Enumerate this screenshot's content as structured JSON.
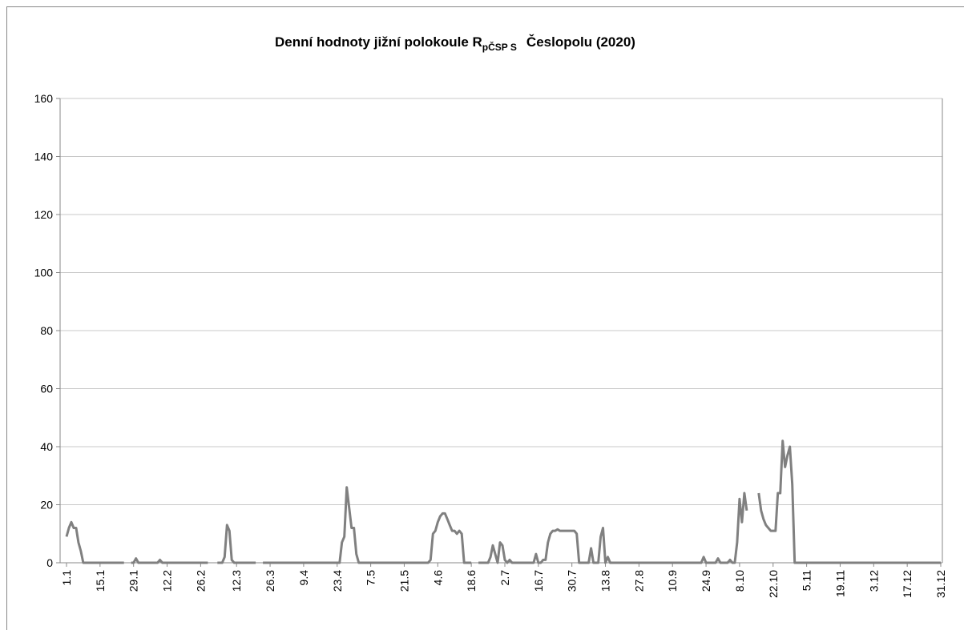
{
  "chart_data": {
    "type": "line",
    "title": "Denní hodnoty jižní polokoule R",
    "title_subscript": "pČSP S",
    "title_suffix": "Česlopolu (2020)",
    "categories": [
      "1.1",
      null,
      null,
      null,
      null,
      null,
      null,
      null,
      null,
      null,
      null,
      null,
      null,
      null,
      "15.1",
      null,
      null,
      null,
      null,
      null,
      null,
      null,
      null,
      null,
      null,
      null,
      null,
      null,
      "29.1",
      null,
      null,
      null,
      null,
      null,
      null,
      null,
      null,
      null,
      null,
      null,
      null,
      null,
      "12.2",
      null,
      null,
      null,
      null,
      null,
      null,
      null,
      null,
      null,
      null,
      null,
      null,
      null,
      "26.2",
      null,
      null,
      null,
      null,
      null,
      null,
      null,
      null,
      null,
      null,
      null,
      null,
      null,
      null,
      "12.3",
      null,
      null,
      null,
      null,
      null,
      null,
      null,
      null,
      null,
      null,
      null,
      null,
      null,
      "26.3",
      null,
      null,
      null,
      null,
      null,
      null,
      null,
      null,
      null,
      null,
      null,
      null,
      null,
      "9.4",
      null,
      null,
      null,
      null,
      null,
      null,
      null,
      null,
      null,
      null,
      null,
      null,
      null,
      "23.4",
      null,
      null,
      null,
      null,
      null,
      null,
      null,
      null,
      null,
      null,
      null,
      null,
      null,
      "7.5",
      null,
      null,
      null,
      null,
      null,
      null,
      null,
      null,
      null,
      null,
      null,
      null,
      null,
      "21.5",
      null,
      null,
      null,
      null,
      null,
      null,
      null,
      null,
      null,
      null,
      null,
      null,
      null,
      "4.6",
      null,
      null,
      null,
      null,
      null,
      null,
      null,
      null,
      null,
      null,
      null,
      null,
      null,
      "18.6",
      null,
      null,
      null,
      null,
      null,
      null,
      null,
      null,
      null,
      null,
      null,
      null,
      null,
      "2.7",
      null,
      null,
      null,
      null,
      null,
      null,
      null,
      null,
      null,
      null,
      null,
      null,
      null,
      "16.7",
      null,
      null,
      null,
      null,
      null,
      null,
      null,
      null,
      null,
      null,
      null,
      null,
      null,
      "30.7",
      null,
      null,
      null,
      null,
      null,
      null,
      null,
      null,
      null,
      null,
      null,
      null,
      null,
      "13.8",
      null,
      null,
      null,
      null,
      null,
      null,
      null,
      null,
      null,
      null,
      null,
      null,
      null,
      "27.8",
      null,
      null,
      null,
      null,
      null,
      null,
      null,
      null,
      null,
      null,
      null,
      null,
      null,
      "10.9",
      null,
      null,
      null,
      null,
      null,
      null,
      null,
      null,
      null,
      null,
      null,
      null,
      null,
      "24.9",
      null,
      null,
      null,
      null,
      null,
      null,
      null,
      null,
      null,
      null,
      null,
      null,
      null,
      "8.10",
      null,
      null,
      null,
      null,
      null,
      null,
      null,
      null,
      null,
      null,
      null,
      null,
      null,
      "22.10",
      null,
      null,
      null,
      null,
      null,
      null,
      null,
      null,
      null,
      null,
      null,
      null,
      null,
      "5.11",
      null,
      null,
      null,
      null,
      null,
      null,
      null,
      null,
      null,
      null,
      null,
      null,
      null,
      "19.11",
      null,
      null,
      null,
      null,
      null,
      null,
      null,
      null,
      null,
      null,
      null,
      null,
      null,
      "3.12",
      null,
      null,
      null,
      null,
      null,
      null,
      null,
      null,
      null,
      null,
      null,
      null,
      null,
      "17.12",
      null,
      null,
      null,
      null,
      null,
      null,
      null,
      null,
      null,
      null,
      null,
      null,
      null,
      "31.12"
    ],
    "values": [
      9,
      12,
      14,
      12,
      12,
      7,
      4,
      0,
      0,
      0,
      0,
      0,
      0,
      0,
      0,
      0,
      0,
      0,
      0,
      0,
      0,
      0,
      0,
      0,
      0,
      null,
      null,
      0,
      0,
      1.5,
      0,
      0,
      0,
      0,
      0,
      0,
      0,
      0,
      0,
      1,
      0,
      0,
      0,
      0,
      0,
      0,
      0,
      0,
      0,
      0,
      0,
      0,
      0,
      0,
      0,
      0,
      0,
      0,
      0,
      0,
      null,
      null,
      null,
      0,
      0,
      0,
      2,
      13,
      11,
      1,
      0,
      0,
      0,
      0,
      0,
      0,
      0,
      0,
      0,
      0,
      null,
      null,
      0,
      0,
      0,
      0,
      0,
      0,
      0,
      0,
      0,
      0,
      0,
      0,
      0,
      0,
      0,
      0,
      0,
      0,
      0,
      0,
      0,
      0,
      0,
      0,
      0,
      0,
      0,
      0,
      0,
      0,
      0,
      0,
      0,
      7,
      9,
      26,
      19,
      12,
      12,
      3,
      0,
      0,
      0,
      0,
      0,
      0,
      0,
      0,
      0,
      0,
      0,
      0,
      0,
      0,
      0,
      0,
      0,
      0,
      0,
      0,
      0,
      0,
      0,
      0,
      0,
      0,
      0,
      0,
      0,
      0,
      1,
      10,
      11,
      14,
      16,
      17,
      17,
      15,
      13,
      11,
      11,
      10,
      11,
      10,
      0,
      0,
      0,
      0,
      null,
      null,
      0,
      0,
      0,
      0,
      0,
      2,
      6,
      3,
      0,
      7,
      6,
      1,
      0,
      1,
      0,
      0,
      0,
      0,
      0,
      0,
      0,
      0,
      0,
      0,
      3,
      0,
      0,
      1,
      1,
      7,
      10,
      11,
      11,
      11.5,
      11,
      11,
      11,
      11,
      11,
      11,
      11,
      10,
      0,
      0,
      0,
      0,
      0,
      5,
      0,
      0,
      0,
      9,
      12,
      0,
      2,
      0,
      0,
      0,
      0,
      0,
      0,
      0,
      0,
      0,
      0,
      0,
      0,
      0,
      0,
      0,
      0,
      0,
      0,
      0,
      0,
      0,
      0,
      0,
      0,
      0,
      0,
      0,
      0,
      0,
      0,
      0,
      0,
      0,
      0,
      0,
      0,
      0,
      0,
      0,
      2,
      0,
      0,
      0,
      0,
      0,
      1.5,
      0,
      0,
      0,
      0,
      1,
      0,
      0,
      7,
      22,
      14,
      24,
      18,
      null,
      null,
      null,
      null,
      24,
      18,
      15,
      13,
      12,
      11,
      11,
      11,
      24,
      24,
      42,
      33,
      37,
      40,
      27,
      0,
      0,
      0,
      0,
      0,
      0,
      0,
      0,
      0,
      0,
      0,
      0,
      0,
      0,
      0,
      0,
      0,
      0,
      0,
      0,
      0,
      0,
      0,
      0,
      0,
      0,
      0,
      0,
      0,
      0,
      0,
      0,
      0,
      0,
      0,
      0,
      0,
      0,
      0,
      0,
      0,
      0,
      0,
      0,
      0,
      0,
      0,
      0,
      0,
      0,
      0,
      0,
      0,
      0,
      0,
      0,
      0,
      0,
      0,
      0,
      0,
      0
    ],
    "color": "#808080",
    "ylim": [
      0,
      160
    ],
    "yticks": [
      0,
      20,
      40,
      60,
      80,
      100,
      120,
      140,
      160
    ],
    "grid": true
  }
}
